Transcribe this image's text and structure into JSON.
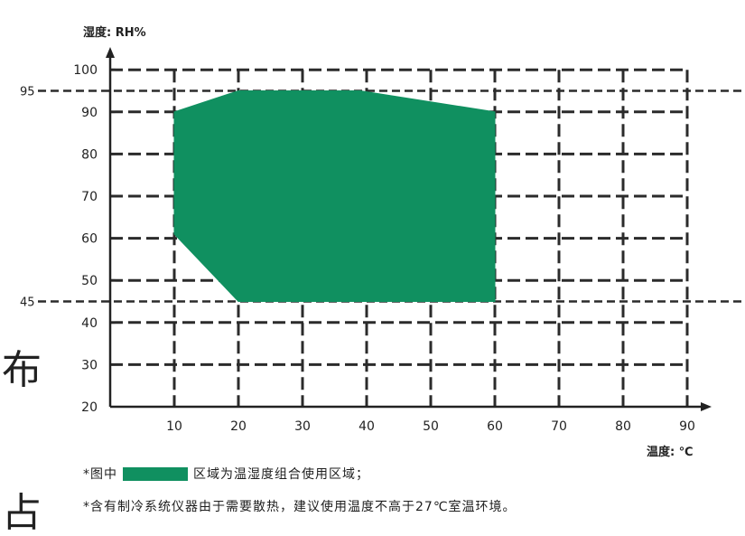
{
  "chart_data": {
    "type": "area",
    "ylabel": "湿度: RH%",
    "xlabel": "温度: ℃",
    "xlim": [
      0,
      90
    ],
    "ylim": [
      20,
      100
    ],
    "x_ticks": [
      10,
      20,
      30,
      40,
      50,
      60,
      70,
      80,
      90
    ],
    "y_ticks": [
      20,
      30,
      40,
      50,
      60,
      70,
      80,
      90,
      100
    ],
    "grid": true,
    "reference_lines": [
      {
        "axis": "y",
        "value": 95,
        "label": "95"
      },
      {
        "axis": "y",
        "value": 45,
        "label": "45"
      }
    ],
    "region": {
      "points": [
        [
          10,
          90
        ],
        [
          20,
          95
        ],
        [
          39,
          95
        ],
        [
          60,
          90
        ],
        [
          60,
          45
        ],
        [
          20,
          45
        ],
        [
          10,
          61
        ]
      ],
      "color": "#109060"
    }
  },
  "notes": {
    "line1_prefix": "*图中",
    "line1_suffix": "区域为温湿度组合使用区域；",
    "line2": "*含有制冷系统仪器由于需要散热，建议使用温度不高于27℃室温环境。"
  },
  "side_text": {
    "char1": "布",
    "char2": "占"
  }
}
